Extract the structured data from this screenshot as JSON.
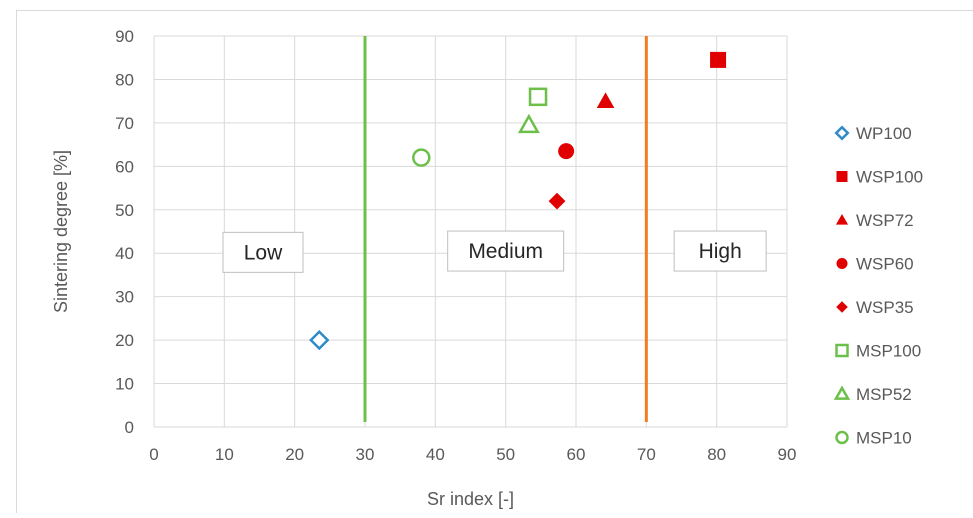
{
  "chart_data": {
    "type": "scatter",
    "xlabel": "Sr index [-]",
    "ylabel": "Sintering degree  [%]",
    "xlim": [
      0,
      90
    ],
    "ylim": [
      0,
      90
    ],
    "x_ticks": [
      "0",
      "10",
      "20",
      "30",
      "40",
      "50",
      "60",
      "70",
      "80",
      "90"
    ],
    "y_ticks": [
      "0",
      "10",
      "20",
      "30",
      "40",
      "50",
      "60",
      "70",
      "80",
      "90"
    ],
    "grid": true,
    "legend_position": "right",
    "series": [
      {
        "name": "WP100",
        "marker": "diamond-open",
        "color": "#2e8bc8",
        "x": 23.5,
        "y": 20
      },
      {
        "name": "WSP100",
        "marker": "square-filled",
        "color": "#e00000",
        "x": 80.2,
        "y": 84.5
      },
      {
        "name": "WSP72",
        "marker": "triangle-filled",
        "color": "#e00000",
        "x": 64.2,
        "y": 75
      },
      {
        "name": "WSP60",
        "marker": "circle-filled",
        "color": "#e00000",
        "x": 58.6,
        "y": 63.5
      },
      {
        "name": "WSP35",
        "marker": "diamond-filled",
        "color": "#e00000",
        "x": 57.3,
        "y": 52
      },
      {
        "name": "MSP100",
        "marker": "square-open",
        "color": "#6cc04a",
        "x": 54.6,
        "y": 76
      },
      {
        "name": "MSP52",
        "marker": "triangle-open",
        "color": "#6cc04a",
        "x": 53.3,
        "y": 69.5
      },
      {
        "name": "MSP10",
        "marker": "circle-open",
        "color": "#6cc04a",
        "x": 38.0,
        "y": 62
      }
    ],
    "vertical_lines": [
      {
        "x": 30,
        "color": "#6cc04a"
      },
      {
        "x": 70,
        "color": "#f07d22"
      }
    ],
    "region_labels": [
      {
        "text": "Low",
        "x": 15.5,
        "y": 40.2
      },
      {
        "text": "Medium",
        "x": 50,
        "y": 40.5
      },
      {
        "text": "High",
        "x": 80.5,
        "y": 40.5
      }
    ]
  }
}
